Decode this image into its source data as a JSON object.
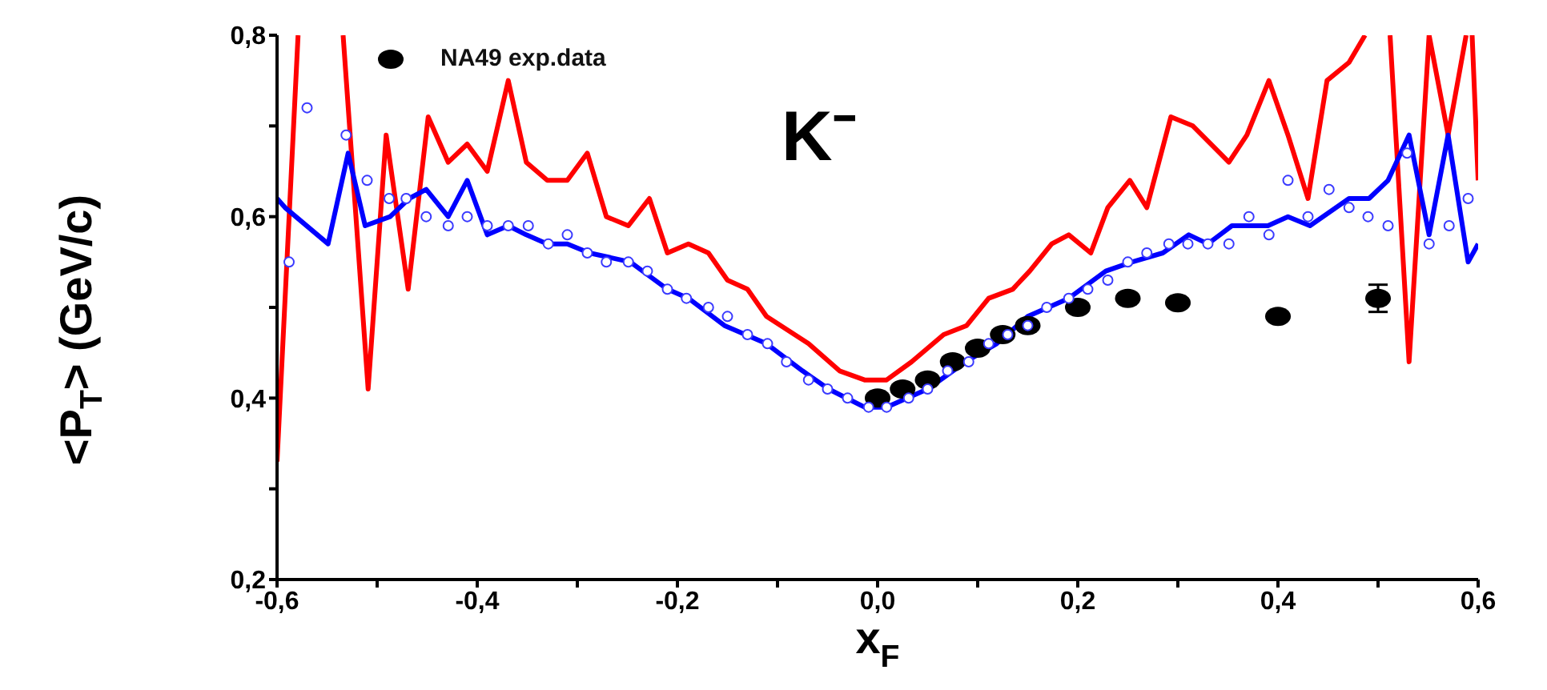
{
  "chart_data": {
    "type": "line",
    "xlabel": "x$_{F}$",
    "ylabel": "<P$_{T}$> (GeV/c)",
    "annotations": [
      "K⁻"
    ],
    "xlim": [
      -0.6,
      0.6
    ],
    "xticks": [
      {
        "value": -0.6,
        "label": "-0,6"
      },
      {
        "value": -0.5,
        "label": null
      },
      {
        "value": -0.4,
        "label": "-0,4"
      },
      {
        "value": -0.3,
        "label": null
      },
      {
        "value": -0.2,
        "label": "-0,2"
      },
      {
        "value": -0.1,
        "label": null
      },
      {
        "value": 0,
        "label": "0,0"
      },
      {
        "value": 0.1,
        "label": null
      },
      {
        "value": 0.2,
        "label": "0,2"
      },
      {
        "value": 0.3,
        "label": null
      },
      {
        "value": 0.4,
        "label": "0,4"
      },
      {
        "value": 0.5,
        "label": null
      },
      {
        "value": 0.6,
        "label": "0,6"
      }
    ],
    "ylim": [
      0.2,
      0.8
    ],
    "yticks": [
      {
        "value": 0.2,
        "label": "0,2"
      },
      {
        "value": 0.3,
        "label": null
      },
      {
        "value": 0.4,
        "label": "0,4"
      },
      {
        "value": 0.5,
        "label": null
      },
      {
        "value": 0.6,
        "label": "0,6"
      },
      {
        "value": 0.7,
        "label": null
      },
      {
        "value": 0.8,
        "label": "0,8"
      }
    ],
    "grid": false,
    "legend": "top left",
    "series": [
      {
        "color": "#ff0000",
        "marker": "none",
        "x": [
          -0.6,
          -0.579,
          -0.57,
          -0.534,
          -0.509,
          -0.491,
          -0.469,
          -0.449,
          -0.429,
          -0.41,
          -0.39,
          -0.369,
          -0.351,
          -0.33,
          -0.31,
          -0.29,
          -0.271,
          -0.249,
          -0.228,
          -0.21,
          -0.189,
          -0.169,
          -0.15,
          -0.13,
          -0.111,
          -0.069,
          -0.038,
          -0.013,
          0.009,
          0.034,
          0.066,
          0.089,
          0.111,
          0.135,
          0.152,
          0.174,
          0.191,
          0.213,
          0.23,
          0.252,
          0.269,
          0.293,
          0.315,
          0.351,
          0.369,
          0.391,
          0.41,
          0.43,
          0.449,
          0.471,
          0.487,
          0.5,
          0.512,
          0.531,
          0.551,
          0.57,
          0.588,
          0.59,
          0.594,
          0.6
        ],
        "values": [
          0.33,
          0.8,
          null,
          0.8,
          0.41,
          0.69,
          0.52,
          0.71,
          0.66,
          0.68,
          0.65,
          0.75,
          0.66,
          0.64,
          0.64,
          0.67,
          0.6,
          0.59,
          0.62,
          0.56,
          0.57,
          0.56,
          0.53,
          0.52,
          0.49,
          0.46,
          0.43,
          0.42,
          0.42,
          0.44,
          0.47,
          0.48,
          0.51,
          0.52,
          0.54,
          0.57,
          0.58,
          0.56,
          0.61,
          0.64,
          0.61,
          0.71,
          0.7,
          0.66,
          0.69,
          0.75,
          0.69,
          0.62,
          0.75,
          0.77,
          0.8,
          null,
          0.8,
          0.44,
          0.8,
          0.69,
          0.8,
          null,
          0.8,
          0.64
        ]
      },
      {
        "color": "#0000ff",
        "marker": "none",
        "x": [
          -0.6,
          -0.592,
          -0.549,
          -0.529,
          -0.512,
          -0.487,
          -0.468,
          -0.451,
          -0.429,
          -0.41,
          -0.39,
          -0.369,
          -0.351,
          -0.33,
          -0.31,
          -0.288,
          -0.247,
          -0.21,
          -0.189,
          -0.153,
          -0.111,
          -0.075,
          -0.049,
          -0.013,
          0.009,
          0.05,
          0.088,
          0.119,
          0.15,
          0.191,
          0.228,
          0.254,
          0.285,
          0.311,
          0.33,
          0.354,
          0.39,
          0.41,
          0.432,
          0.471,
          0.491,
          0.51,
          0.531,
          0.551,
          0.57,
          0.59,
          0.6
        ],
        "values": [
          0.62,
          0.61,
          0.57,
          0.67,
          0.59,
          0.6,
          0.62,
          0.63,
          0.6,
          0.64,
          0.58,
          0.59,
          0.58,
          0.57,
          0.57,
          0.56,
          0.55,
          0.52,
          0.51,
          0.48,
          0.46,
          0.43,
          0.41,
          0.39,
          0.39,
          0.41,
          0.44,
          0.46,
          0.49,
          0.51,
          0.54,
          0.55,
          0.56,
          0.58,
          0.57,
          0.59,
          0.59,
          0.6,
          0.59,
          0.62,
          0.62,
          0.64,
          0.69,
          0.58,
          0.69,
          0.55,
          0.57
        ]
      },
      {
        "type": "scatter",
        "name": "NA49 exp.data",
        "color": "#000000",
        "marker": "circle",
        "x": [
          0,
          0.025,
          0.05,
          0.075,
          0.1,
          0.125,
          0.15,
          0.2,
          0.25,
          0.3,
          0.4,
          0.5
        ],
        "values": [
          0.4,
          0.41,
          0.42,
          0.44,
          0.455,
          0.47,
          0.48,
          0.5,
          0.51,
          0.505,
          0.49,
          0.51
        ],
        "errors": [
          null,
          null,
          null,
          null,
          null,
          null,
          null,
          null,
          null,
          null,
          null,
          0.015
        ]
      },
      {
        "type": "scatter",
        "color": "#3a3aff",
        "marker": "circle",
        "x": [
          -0.588,
          -0.57,
          -0.531,
          -0.51,
          -0.488,
          -0.471,
          -0.451,
          -0.429,
          -0.41,
          -0.39,
          -0.369,
          -0.349,
          -0.329,
          -0.31,
          -0.29,
          -0.271,
          -0.249,
          -0.23,
          -0.21,
          -0.191,
          -0.169,
          -0.15,
          -0.13,
          -0.11,
          -0.091,
          -0.069,
          -0.05,
          -0.03,
          -0.009,
          0.009,
          0.031,
          0.05,
          0.07,
          0.091,
          0.111,
          0.13,
          0.15,
          0.169,
          0.191,
          0.21,
          0.23,
          0.25,
          0.269,
          0.291,
          0.31,
          0.33,
          0.351,
          0.371,
          0.391,
          0.41,
          0.43,
          0.451,
          0.471,
          0.49,
          0.51,
          0.529,
          0.551,
          0.571,
          0.59
        ],
        "values": [
          0.55,
          0.72,
          0.69,
          0.64,
          0.62,
          0.62,
          0.6,
          0.59,
          0.6,
          0.59,
          0.59,
          0.59,
          0.57,
          0.58,
          0.56,
          0.55,
          0.55,
          0.54,
          0.52,
          0.51,
          0.5,
          0.49,
          0.47,
          0.46,
          0.44,
          0.42,
          0.41,
          0.4,
          0.39,
          0.39,
          0.4,
          0.41,
          0.43,
          0.44,
          0.46,
          0.47,
          0.48,
          0.5,
          0.51,
          0.52,
          0.53,
          0.55,
          0.56,
          0.57,
          0.57,
          0.57,
          0.57,
          0.6,
          0.58,
          0.64,
          0.6,
          0.63,
          0.61,
          0.6,
          0.59,
          0.67,
          0.57,
          0.59,
          0.62
        ]
      }
    ]
  }
}
